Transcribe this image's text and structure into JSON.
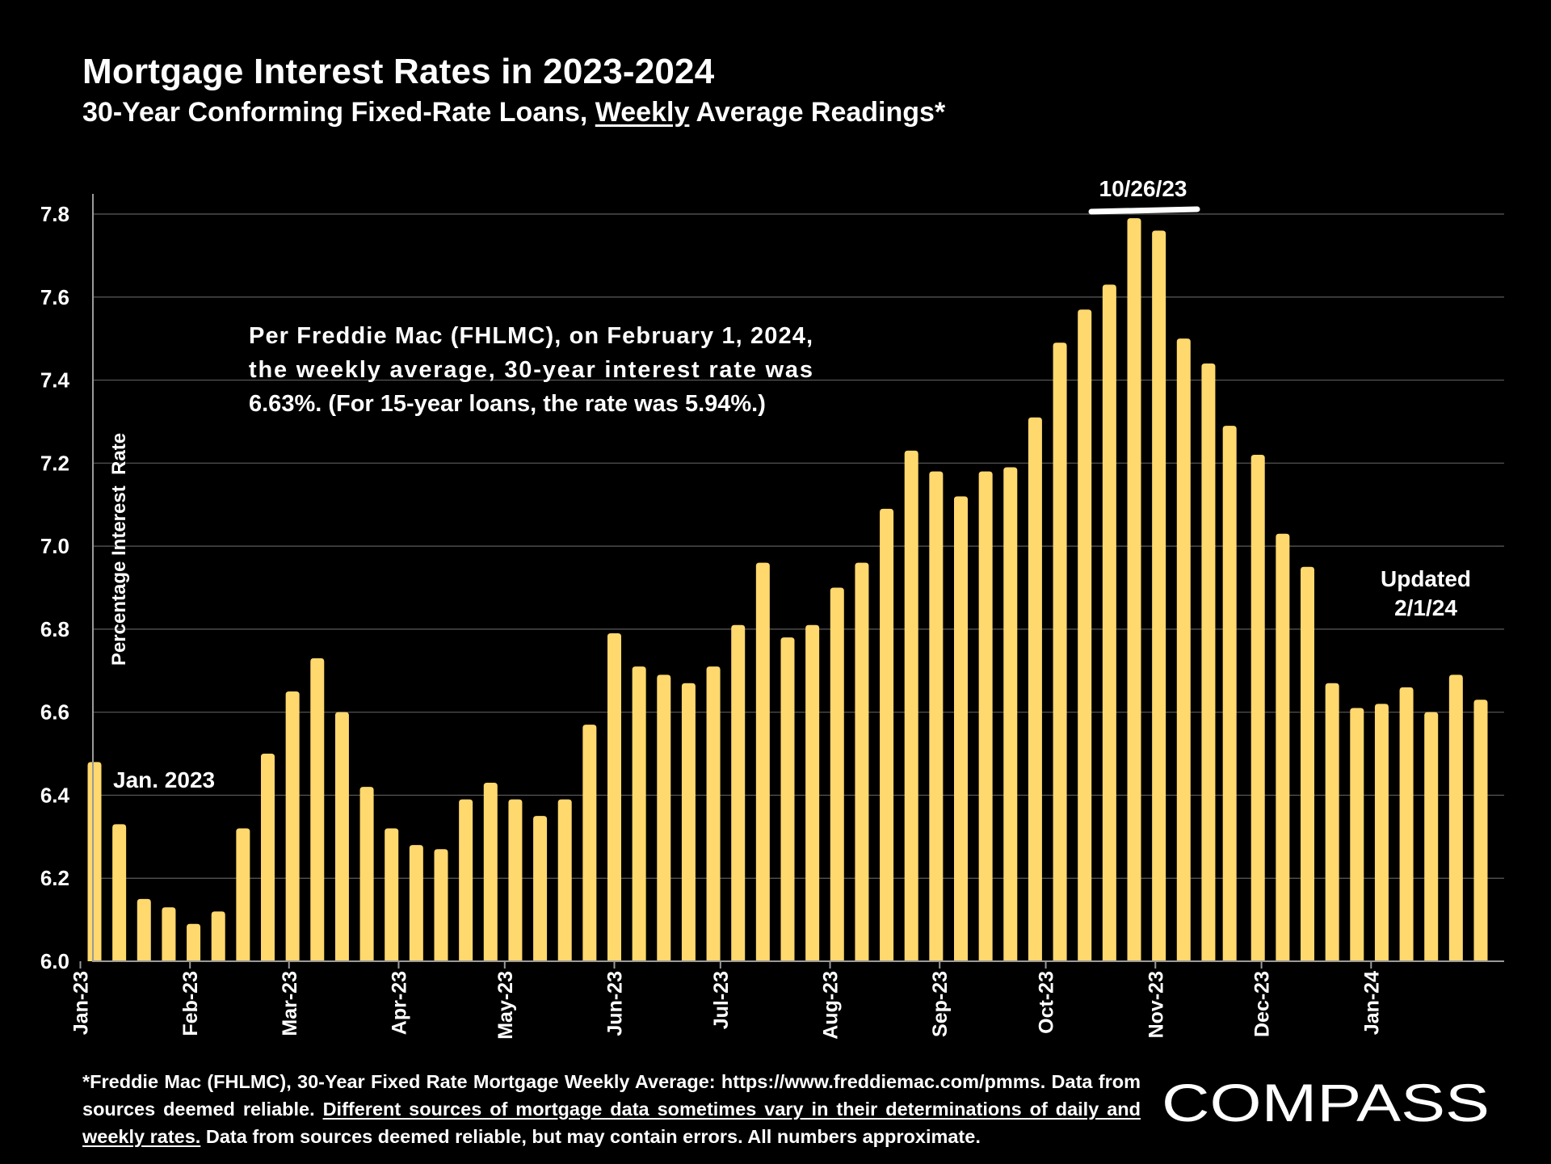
{
  "header": {
    "title": "Mortgage Interest Rates in 2023-2024",
    "subtitle_pre": "30-Year Conforming Fixed-Rate Loans, ",
    "subtitle_underlined": "Weekly",
    "subtitle_post": " Average Readings*"
  },
  "chart_data": {
    "type": "bar",
    "title": "Mortgage Interest Rates in 2023-2024",
    "subtitle": "30-Year Conforming Fixed-Rate Loans, Weekly Average Readings*",
    "ylabel": "Percentage Interest  Rate",
    "xlabel": "",
    "ylim": [
      6.0,
      7.8
    ],
    "yticks": [
      "6.0",
      "6.2",
      "6.4",
      "6.6",
      "6.8",
      "7.0",
      "7.2",
      "7.4",
      "7.6",
      "7.8"
    ],
    "grid": true,
    "bar_color": "#FFD86E",
    "x": [
      "2023-01-05",
      "2023-01-12",
      "2023-01-19",
      "2023-01-26",
      "2023-02-02",
      "2023-02-09",
      "2023-02-16",
      "2023-02-23",
      "2023-03-02",
      "2023-03-09",
      "2023-03-16",
      "2023-03-23",
      "2023-03-30",
      "2023-04-06",
      "2023-04-13",
      "2023-04-20",
      "2023-04-27",
      "2023-05-04",
      "2023-05-11",
      "2023-05-18",
      "2023-05-25",
      "2023-06-01",
      "2023-06-08",
      "2023-06-15",
      "2023-06-22",
      "2023-06-29",
      "2023-07-06",
      "2023-07-13",
      "2023-07-20",
      "2023-07-27",
      "2023-08-03",
      "2023-08-10",
      "2023-08-17",
      "2023-08-24",
      "2023-08-31",
      "2023-09-07",
      "2023-09-14",
      "2023-09-21",
      "2023-09-28",
      "2023-10-05",
      "2023-10-12",
      "2023-10-19",
      "2023-10-26",
      "2023-11-02",
      "2023-11-09",
      "2023-11-16",
      "2023-11-22",
      "2023-11-30",
      "2023-12-07",
      "2023-12-14",
      "2023-12-21",
      "2023-12-28",
      "2024-01-04",
      "2024-01-11",
      "2024-01-18",
      "2024-01-25",
      "2024-02-01"
    ],
    "values": [
      6.48,
      6.33,
      6.15,
      6.13,
      6.09,
      6.12,
      6.32,
      6.5,
      6.65,
      6.73,
      6.6,
      6.42,
      6.32,
      6.28,
      6.27,
      6.39,
      6.43,
      6.39,
      6.35,
      6.39,
      6.57,
      6.79,
      6.71,
      6.69,
      6.67,
      6.71,
      6.81,
      6.96,
      6.78,
      6.81,
      6.9,
      6.96,
      7.09,
      7.23,
      7.18,
      7.12,
      7.18,
      7.19,
      7.31,
      7.49,
      7.57,
      7.63,
      7.79,
      7.76,
      7.5,
      7.44,
      7.29,
      7.22,
      7.03,
      6.95,
      6.67,
      6.61,
      6.62,
      6.66,
      6.6,
      6.69,
      6.63
    ],
    "x_tick_labels": [
      "Jan-23",
      "Feb-23",
      "Mar-23",
      "Apr-23",
      "May-23",
      "Jun-23",
      "Jul-23",
      "Aug-23",
      "Sep-23",
      "Oct-23",
      "Nov-23",
      "Dec-23",
      "Jan-24"
    ],
    "annotations": {
      "start_label": "Jan. 2023",
      "peak_label": "10/26/23",
      "updated_line1": "Updated",
      "updated_line2": "2/1/24",
      "note_lines": [
        "Per Freddie Mac (FHLMC), on February 1, 2024,",
        "the weekly average, 30-year interest rate was",
        "6.63%. (For 15-year loans, the rate was 5.94%.)"
      ]
    }
  },
  "footnote": {
    "line1": "*Freddie Mac (FHLMC), 30-Year Fixed Rate Mortgage Weekly Average:  https://www.freddiemac.com/pmms.",
    "line2_pre": "Data from sources deemed reliable. ",
    "underlined": "Different sources of mortgage data sometimes vary in their determinations of daily and weekly rates.",
    "line3_post": " Data from sources deemed reliable, but may contain errors. All numbers approximate."
  },
  "logo": {
    "text": "COMPASS"
  }
}
